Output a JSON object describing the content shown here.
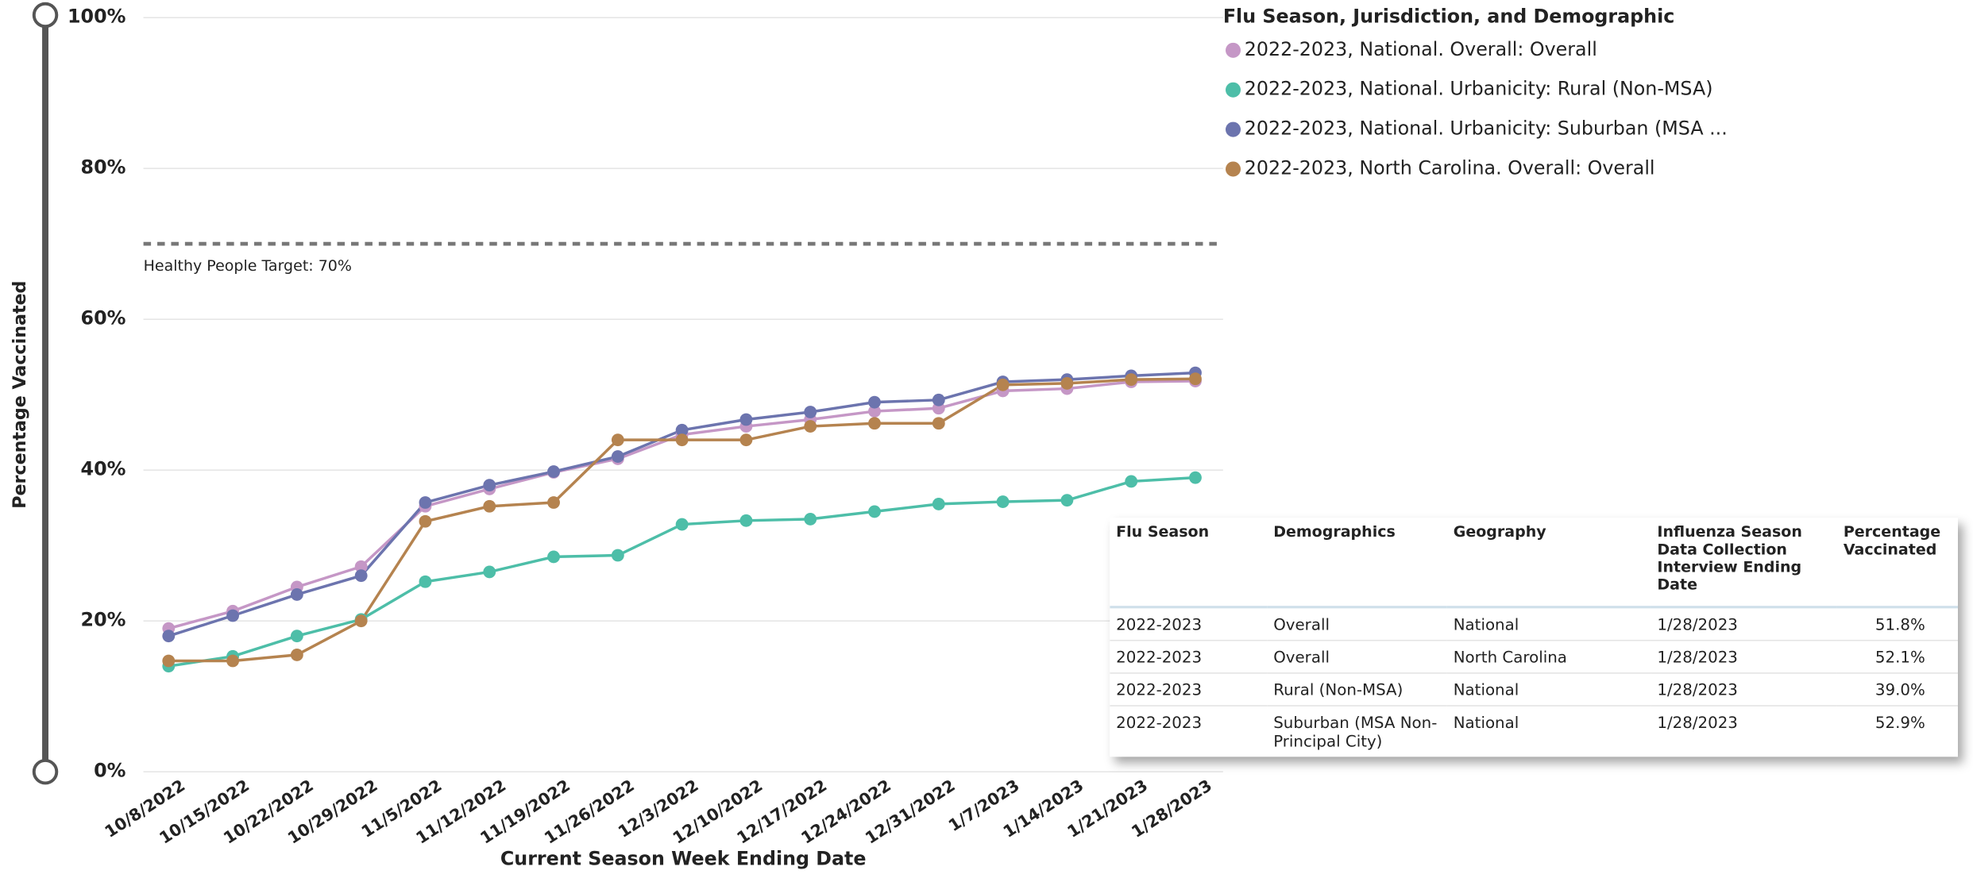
{
  "chart_data": {
    "type": "line",
    "legend_title": "Flu Season, Jurisdiction, and Demographic",
    "x_label": "Current Season Week Ending Date",
    "y_label": "Percentage Vaccinated",
    "categories": [
      "10/8/2022",
      "10/15/2022",
      "10/22/2022",
      "10/29/2022",
      "11/5/2022",
      "11/12/2022",
      "11/19/2022",
      "11/26/2022",
      "12/3/2022",
      "12/10/2022",
      "12/17/2022",
      "12/24/2022",
      "12/31/2022",
      "1/7/2023",
      "1/14/2023",
      "1/21/2023",
      "1/28/2023"
    ],
    "series": [
      {
        "name": "2022-2023, National. Overall: Overall",
        "color": "#c597c6",
        "values": [
          19.0,
          21.3,
          24.5,
          27.2,
          35.2,
          37.5,
          39.7,
          41.5,
          44.7,
          45.8,
          46.7,
          47.8,
          48.2,
          50.5,
          50.8,
          51.7,
          51.8
        ]
      },
      {
        "name": "2022-2023, National. Urbanicity: Rural (Non-MSA)",
        "color": "#4dbea8",
        "values": [
          14.0,
          15.3,
          18.0,
          20.2,
          25.2,
          26.5,
          28.5,
          28.7,
          32.8,
          33.3,
          33.5,
          34.5,
          35.5,
          35.8,
          36.0,
          38.5,
          39.0
        ]
      },
      {
        "name": "2022-2023, National. Urbanicity: Suburban (MSA ...",
        "color": "#6c74ae",
        "values": [
          18.0,
          20.7,
          23.5,
          26.0,
          35.7,
          38.0,
          39.8,
          41.8,
          45.3,
          46.7,
          47.7,
          49.0,
          49.3,
          51.7,
          52.0,
          52.5,
          52.9
        ]
      },
      {
        "name": "2022-2023, North Carolina. Overall: Overall",
        "color": "#b5834f",
        "values": [
          14.7,
          14.7,
          15.5,
          20.0,
          33.2,
          35.2,
          35.7,
          44.0,
          44.0,
          44.0,
          45.8,
          46.2,
          46.2,
          51.3,
          51.5,
          52.0,
          52.1
        ]
      }
    ],
    "ylim": [
      0,
      100
    ],
    "yticks": [
      {
        "value": 0,
        "label": "0%"
      },
      {
        "value": 20,
        "label": "20%"
      },
      {
        "value": 40,
        "label": "40%"
      },
      {
        "value": 60,
        "label": "60%"
      },
      {
        "value": 80,
        "label": "80%"
      },
      {
        "value": 100,
        "label": "100%"
      }
    ],
    "grid": true,
    "target": {
      "value": 70,
      "label": "Healthy People Target: 70%"
    }
  },
  "table": {
    "headers": [
      "Flu Season",
      "Demographics",
      "Geography",
      "Influenza Season Data Collection Interview Ending Date",
      "Percentage Vaccinated"
    ],
    "rows": [
      [
        "2022-2023",
        "Overall",
        "National",
        "1/28/2023",
        "51.8%"
      ],
      [
        "2022-2023",
        "Overall",
        "North Carolina",
        "1/28/2023",
        "52.1%"
      ],
      [
        "2022-2023",
        "Rural (Non-MSA)",
        "National",
        "1/28/2023",
        "39.0%"
      ],
      [
        "2022-2023",
        "Suburban (MSA Non-Principal City)",
        "National",
        "1/28/2023",
        "52.9%"
      ]
    ]
  }
}
